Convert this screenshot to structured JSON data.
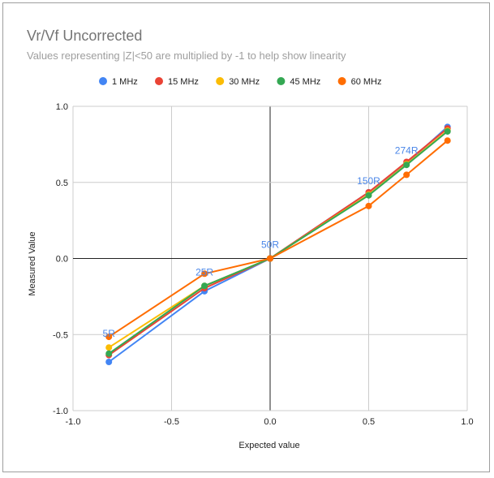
{
  "chart_data": {
    "type": "line",
    "title": "Vr/Vf Uncorrected",
    "subtitle": "Values representing |Z|<50 are multiplied by -1 to help show linearity",
    "xlabel": "Expected value",
    "ylabel": "Measured Value",
    "xlim": [
      -1.0,
      1.0
    ],
    "ylim": [
      -1.0,
      1.0
    ],
    "xticks": [
      "-1.0",
      "-0.5",
      "0.0",
      "0.5",
      "1.0"
    ],
    "yticks": [
      "1.0",
      "0.5",
      "0.0",
      "-0.5",
      "-1.0"
    ],
    "grid": true,
    "legend_position": "top",
    "x": [
      -0.818,
      -0.333,
      0.0,
      0.5,
      0.692,
      0.9
    ],
    "series": [
      {
        "name": "1 MHz",
        "color": "#4285f4",
        "values": [
          -0.68,
          -0.215,
          0.0,
          0.435,
          0.625,
          0.865
        ]
      },
      {
        "name": "15 MHz",
        "color": "#ea4335",
        "values": [
          -0.635,
          -0.195,
          0.0,
          0.435,
          0.635,
          0.855
        ]
      },
      {
        "name": "30 MHz",
        "color": "#fbbc04",
        "values": [
          -0.585,
          -0.18,
          0.0,
          0.42,
          0.62,
          0.84
        ]
      },
      {
        "name": "45 MHz",
        "color": "#34a853",
        "values": [
          -0.625,
          -0.18,
          0.0,
          0.415,
          0.615,
          0.835
        ]
      },
      {
        "name": "60 MHz",
        "color": "#ff6d01",
        "values": [
          -0.515,
          -0.1,
          0.0,
          0.345,
          0.55,
          0.775
        ]
      }
    ],
    "annotations": [
      {
        "text": "5R",
        "x": -0.818,
        "y": -0.585
      },
      {
        "text": "25R",
        "x": -0.333,
        "y": -0.18
      },
      {
        "text": "50R",
        "x": 0.0,
        "y": 0.0
      },
      {
        "text": "150R",
        "x": 0.5,
        "y": 0.42
      },
      {
        "text": "274R",
        "x": 0.692,
        "y": 0.62
      }
    ]
  }
}
